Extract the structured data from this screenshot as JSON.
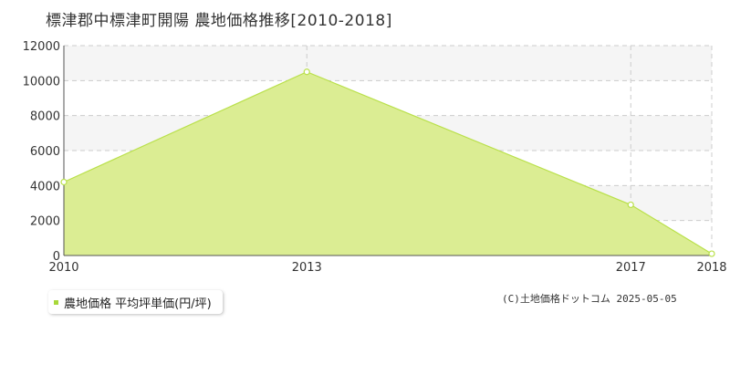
{
  "title": "標津郡中標津町開陽  農地価格推移[2010-2018]",
  "legend_label": "農地価格 平均坪単価(円/坪)",
  "copyright": "(C)土地価格ドットコム 2025-05-05",
  "colors": {
    "area_fill": "#dbed93",
    "line": "#b9e04a",
    "marker": "#a8d83a",
    "grid": "#cccccc",
    "band": "#f5f5f5"
  },
  "chart_data": {
    "type": "area",
    "x": [
      2010,
      2013,
      2017,
      2018
    ],
    "series": [
      {
        "name": "農地価格 平均坪単価(円/坪)",
        "values": [
          4200,
          10500,
          2900,
          100
        ]
      }
    ],
    "ylim": [
      0,
      12000
    ],
    "yticks": [
      0,
      2000,
      4000,
      6000,
      8000,
      10000,
      12000
    ],
    "xticks": [
      "2010",
      "2013",
      "2017",
      "2018"
    ],
    "grid": true,
    "legend_position": "bottom-left"
  }
}
